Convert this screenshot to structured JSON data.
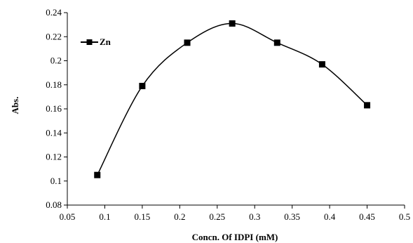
{
  "chart_data": {
    "type": "line",
    "title": "",
    "xlabel": "Concn. Of IDPI (mM)",
    "ylabel": "Abs.",
    "xlim": [
      0.05,
      0.5
    ],
    "ylim": [
      0.08,
      0.24
    ],
    "xticks": [
      "0.05",
      "0.1",
      "0.15",
      "0.2",
      "0.25",
      "0.3",
      "0.35",
      "0.4",
      "0.45",
      "0.5"
    ],
    "yticks": [
      "0.08",
      "0.1",
      "0.12",
      "0.14",
      "0.16",
      "0.18",
      "0.2",
      "0.22",
      "0.24"
    ],
    "grid": false,
    "smooth": true,
    "legend_position": "top-left",
    "series": [
      {
        "name": "Zn",
        "color": "#000000",
        "marker": "square",
        "x": [
          0.09,
          0.15,
          0.21,
          0.27,
          0.33,
          0.39,
          0.45
        ],
        "y": [
          0.105,
          0.179,
          0.215,
          0.231,
          0.215,
          0.197,
          0.163
        ]
      }
    ]
  }
}
